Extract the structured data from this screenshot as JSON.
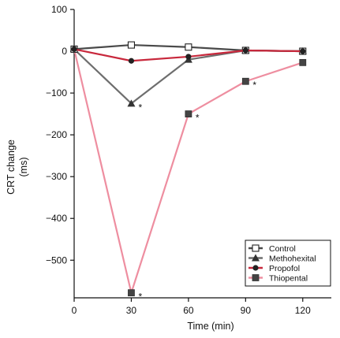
{
  "chart_data": {
    "type": "line",
    "xlabel": "Time (min)",
    "ylabel_lines": [
      "CRT change",
      "(ms)"
    ],
    "xlim": [
      0,
      135
    ],
    "ylim": [
      -590,
      100
    ],
    "x_ticks": [
      0,
      30,
      60,
      90,
      120
    ],
    "y_ticks": [
      100,
      0,
      -100,
      -200,
      -300,
      -400,
      -500
    ],
    "x": [
      0,
      30,
      60,
      90,
      120
    ],
    "legend_position": "bottom-right",
    "significance_marker": "*",
    "series": [
      {
        "name": "Control",
        "marker": "open-square",
        "color": "#4a4a4a",
        "values": [
          5,
          15,
          10,
          2,
          0
        ],
        "significant": [
          false,
          false,
          false,
          false,
          false
        ]
      },
      {
        "name": "Methohexital",
        "marker": "triangle",
        "color": "#6e6e6e",
        "values": [
          5,
          -125,
          -20,
          2,
          0
        ],
        "significant": [
          false,
          true,
          false,
          false,
          false
        ]
      },
      {
        "name": "Propofol",
        "marker": "circle",
        "color": "#c8283c",
        "values": [
          5,
          -23,
          -13,
          2,
          0
        ],
        "significant": [
          false,
          false,
          false,
          false,
          false
        ]
      },
      {
        "name": "Thiopental",
        "marker": "square",
        "color": "#ee8ea0",
        "values": [
          5,
          -578,
          -150,
          -72,
          -27
        ],
        "significant": [
          false,
          true,
          true,
          true,
          false
        ]
      }
    ]
  }
}
